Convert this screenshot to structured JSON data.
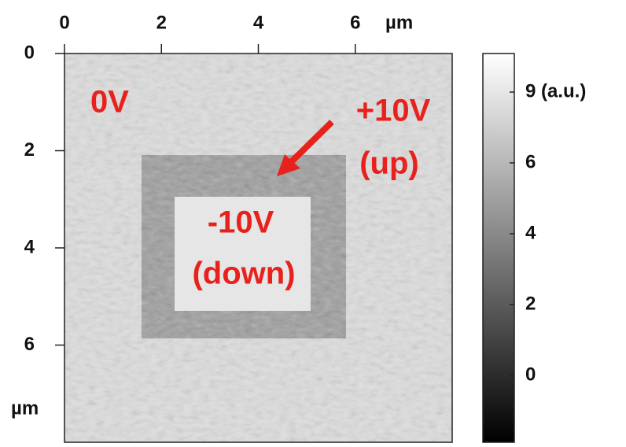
{
  "chart_data": {
    "type": "image",
    "xlim": [
      0,
      8
    ],
    "xticks": [
      0,
      2,
      4,
      6
    ],
    "x_label": "µm",
    "ylim": [
      0,
      8
    ],
    "yticks": [
      0,
      2,
      4,
      6
    ],
    "y_label": "µm",
    "y_inverted": true,
    "colorbar": {
      "ticks": [
        "9 (a.u.)",
        "6",
        "4",
        "2",
        "0"
      ]
    },
    "annotations": [
      "0V",
      "+10V",
      "(up)",
      "-10V",
      "(down)"
    ]
  }
}
